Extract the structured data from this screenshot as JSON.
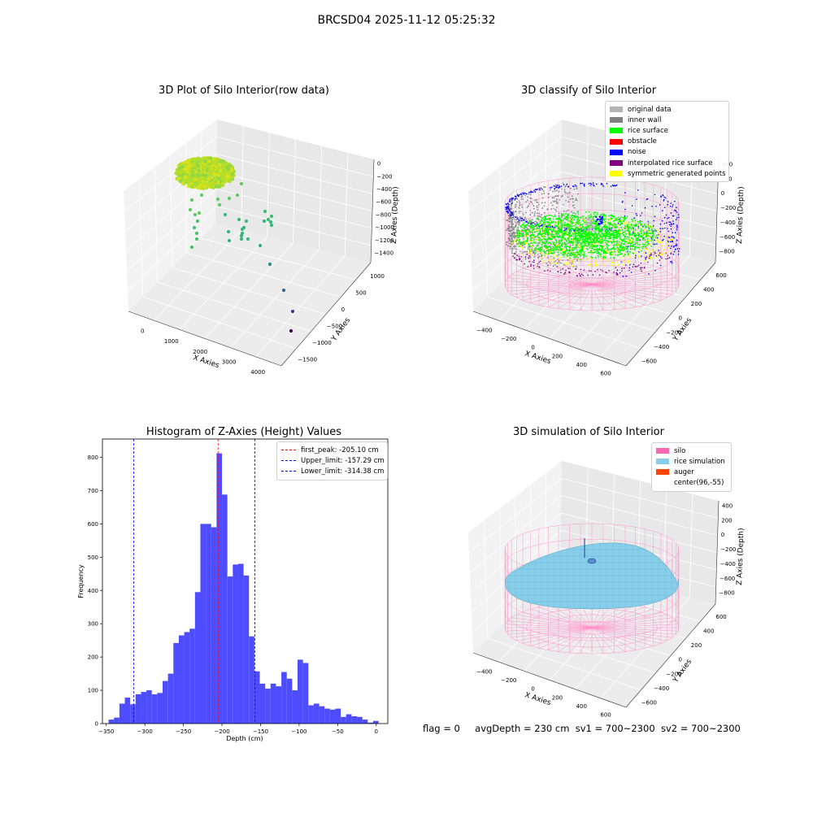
{
  "figure": {
    "suptitle": "BRCSD04 2025-11-12 05:25:32",
    "status": {
      "flag": "flag = 0",
      "avg_depth": "avgDepth = 230 cm",
      "sv1": "sv1 = 700~2300",
      "sv2": "sv2 = 700~2300"
    }
  },
  "chart_data": [
    {
      "type": "scatter",
      "subtype": "3d",
      "title": "3D Plot of Silo Interior(row data)",
      "xlabel": "X Axies",
      "ylabel": "Y Axies",
      "zlabel": "Z Axies (Depth)",
      "x_ticks": [
        "0",
        "1000",
        "2000",
        "3000",
        "4000"
      ],
      "y_ticks": [
        "1000",
        "500",
        "0",
        "−500",
        "−1000",
        "−1500"
      ],
      "z_ticks": [
        "0",
        "−200",
        "−400",
        "−600",
        "−800",
        "−1000",
        "−1200",
        "−1400"
      ],
      "colormap": "viridis",
      "grid": true
    },
    {
      "type": "scatter",
      "subtype": "3d",
      "title": "3D classify of Silo Interior",
      "xlabel": "X Axies",
      "ylabel": "Y Axies",
      "zlabel": "Z Axies (Depth)",
      "x_ticks": [
        "−400",
        "−200",
        "0",
        "200",
        "400",
        "600"
      ],
      "y_ticks": [
        "600",
        "400",
        "200",
        "0",
        "−200",
        "−400",
        "−600"
      ],
      "z_ticks": [
        "400",
        "200",
        "0",
        "−200",
        "−400",
        "−600",
        "−800"
      ],
      "legend_placement": "top-right",
      "legend": [
        {
          "label": "original data",
          "color": "#b3b3b3"
        },
        {
          "label": "inner wall",
          "color": "#808080"
        },
        {
          "label": "rice surface",
          "color": "#00ff00"
        },
        {
          "label": "obstacle",
          "color": "#ff0000"
        },
        {
          "label": "noise",
          "color": "#0000ff"
        },
        {
          "label": "interpolated rice surface",
          "color": "#800080"
        },
        {
          "label": "symmetric generated points",
          "color": "#ffff00"
        }
      ],
      "grid": true
    },
    {
      "type": "bar",
      "subtype": "histogram",
      "title": "Histogram of Z-Axies (Height) Values",
      "xlabel": "Depth (cm)",
      "ylabel": "Frequency",
      "xlim": [
        -355,
        15
      ],
      "ylim": [
        0,
        855
      ],
      "x_ticks": [
        -350,
        -300,
        -250,
        -200,
        -150,
        -100,
        -50,
        0
      ],
      "x_tick_labels": [
        "−350",
        "−300",
        "−250",
        "−200",
        "−150",
        "−100",
        "−50",
        "0"
      ],
      "y_ticks": [
        0,
        100,
        200,
        300,
        400,
        500,
        600,
        700,
        800
      ],
      "y_tick_labels": [
        "0",
        "100",
        "200",
        "300",
        "400",
        "500",
        "600",
        "700",
        "800"
      ],
      "bar_color": "#4d4dff",
      "bin_start": -347,
      "bin_width": 7.0,
      "values": [
        12,
        18,
        60,
        78,
        58,
        88,
        95,
        100,
        88,
        92,
        128,
        150,
        242,
        265,
        275,
        285,
        395,
        600,
        600,
        590,
        812,
        688,
        442,
        478,
        480,
        445,
        262,
        157,
        120,
        105,
        120,
        112,
        155,
        135,
        100,
        192,
        182,
        55,
        60,
        52,
        45,
        42,
        45,
        20,
        28,
        22,
        20,
        12,
        3,
        8
      ],
      "vlines": [
        {
          "label": "first_peak: -205.10 cm",
          "x": -205.1,
          "color": "#ff0000"
        },
        {
          "label": "Upper_limit: -157.29 cm",
          "x": -157.29,
          "color": "#0000ff"
        },
        {
          "label": "Lower_limit: -314.38 cm",
          "x": -314.38,
          "color": "#0000ff"
        }
      ],
      "legend_placement": "top-right"
    },
    {
      "type": "surface",
      "subtype": "3d",
      "title": "3D simulation of Silo Interior",
      "xlabel": "X Axies",
      "ylabel": "Y Axies",
      "zlabel": "Z Axies (Depth)",
      "x_ticks": [
        "−400",
        "−200",
        "0",
        "200",
        "400",
        "600"
      ],
      "y_ticks": [
        "600",
        "400",
        "200",
        "0",
        "−200",
        "−400",
        "−600"
      ],
      "z_ticks": [
        "400",
        "200",
        "0",
        "−200",
        "−400",
        "−600",
        "−800"
      ],
      "legend_placement": "top-right",
      "legend": [
        {
          "label": "silo",
          "color": "#ff69b4"
        },
        {
          "label": "rice simulation",
          "color": "#87ceeb"
        },
        {
          "label": "auger",
          "color": "#ff4500"
        },
        {
          "label": "center(96,-55)",
          "color": "#ffffff"
        }
      ],
      "grid": true
    }
  ]
}
